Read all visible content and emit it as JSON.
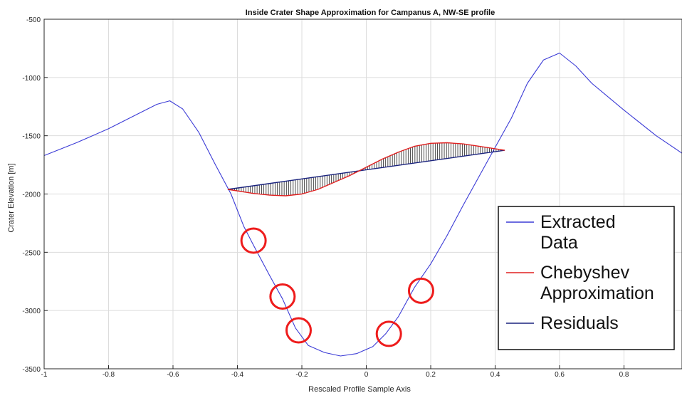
{
  "chart_data": {
    "type": "line",
    "title": "Inside Crater Shape Approximation for Campanus A, NW-SE profile",
    "xlabel": "Rescaled Profile Sample Axis",
    "ylabel": "Crater Elevation [m]",
    "xlim": [
      -1,
      0.98
    ],
    "ylim": [
      -3500,
      -500
    ],
    "xticks": [
      -1,
      -0.8,
      -0.6,
      -0.4,
      -0.2,
      0,
      0.2,
      0.4,
      0.6,
      0.8
    ],
    "xtick_labels": [
      "-1",
      "-0.8",
      "-0.6",
      "-0.4",
      "-0.2",
      "0",
      "0.2",
      "0.4",
      "0.6",
      "0.8"
    ],
    "yticks": [
      -3500,
      -3000,
      -2500,
      -2000,
      -1500,
      -1000,
      -500
    ],
    "ytick_labels": [
      "-3500",
      "-3000",
      "-2500",
      "-2000",
      "-1500",
      "-1000",
      "-500"
    ],
    "grid": true,
    "legend_position": "bottom-right",
    "legend": [
      {
        "label_lines": [
          "Extracted",
          "Data"
        ],
        "color": "#3b3bd6"
      },
      {
        "label_lines": [
          "Chebyshev",
          "Approximation"
        ],
        "color": "#e02020"
      },
      {
        "label_lines": [
          "Residuals"
        ],
        "color": "#1a237e"
      }
    ],
    "series": [
      {
        "name": "Extracted Data",
        "color": "#3b3bd6",
        "x": [
          -1,
          -0.9,
          -0.8,
          -0.7,
          -0.65,
          -0.61,
          -0.57,
          -0.52,
          -0.47,
          -0.42,
          -0.38,
          -0.35,
          -0.3,
          -0.26,
          -0.22,
          -0.18,
          -0.13,
          -0.08,
          -0.03,
          0.02,
          0.06,
          0.1,
          0.15,
          0.2,
          0.25,
          0.3,
          0.35,
          0.4,
          0.45,
          0.5,
          0.55,
          0.6,
          0.65,
          0.7,
          0.8,
          0.9,
          0.98
        ],
        "y": [
          -1670,
          -1560,
          -1440,
          -1300,
          -1230,
          -1200,
          -1270,
          -1470,
          -1740,
          -2000,
          -2280,
          -2440,
          -2700,
          -2900,
          -3150,
          -3300,
          -3360,
          -3390,
          -3370,
          -3310,
          -3200,
          -3050,
          -2800,
          -2600,
          -2360,
          -2100,
          -1850,
          -1600,
          -1350,
          -1050,
          -850,
          -790,
          -900,
          -1050,
          -1280,
          -1500,
          -1650
        ]
      },
      {
        "name": "Chebyshev Approximation",
        "color": "#e02020",
        "x": [
          -0.43,
          -0.35,
          -0.3,
          -0.25,
          -0.2,
          -0.15,
          -0.1,
          -0.05,
          0.0,
          0.05,
          0.1,
          0.15,
          0.2,
          0.25,
          0.3,
          0.35,
          0.43
        ],
        "y": [
          -1960,
          -1995,
          -2010,
          -2015,
          -2000,
          -1960,
          -1900,
          -1840,
          -1770,
          -1700,
          -1640,
          -1590,
          -1565,
          -1560,
          -1570,
          -1590,
          -1625
        ]
      },
      {
        "name": "Residuals",
        "color": "#1a237e",
        "x": [
          -0.43,
          0.43
        ],
        "y": [
          -1960,
          -1625
        ]
      }
    ],
    "annotations": [
      {
        "type": "circle",
        "x": -0.35,
        "y": -2400,
        "color": "#ee1c1c"
      },
      {
        "type": "circle",
        "x": -0.26,
        "y": -2880,
        "color": "#ee1c1c"
      },
      {
        "type": "circle",
        "x": -0.21,
        "y": -3170,
        "color": "#ee1c1c"
      },
      {
        "type": "circle",
        "x": 0.07,
        "y": -3200,
        "color": "#ee1c1c"
      },
      {
        "type": "circle",
        "x": 0.17,
        "y": -2830,
        "color": "#ee1c1c"
      }
    ]
  }
}
